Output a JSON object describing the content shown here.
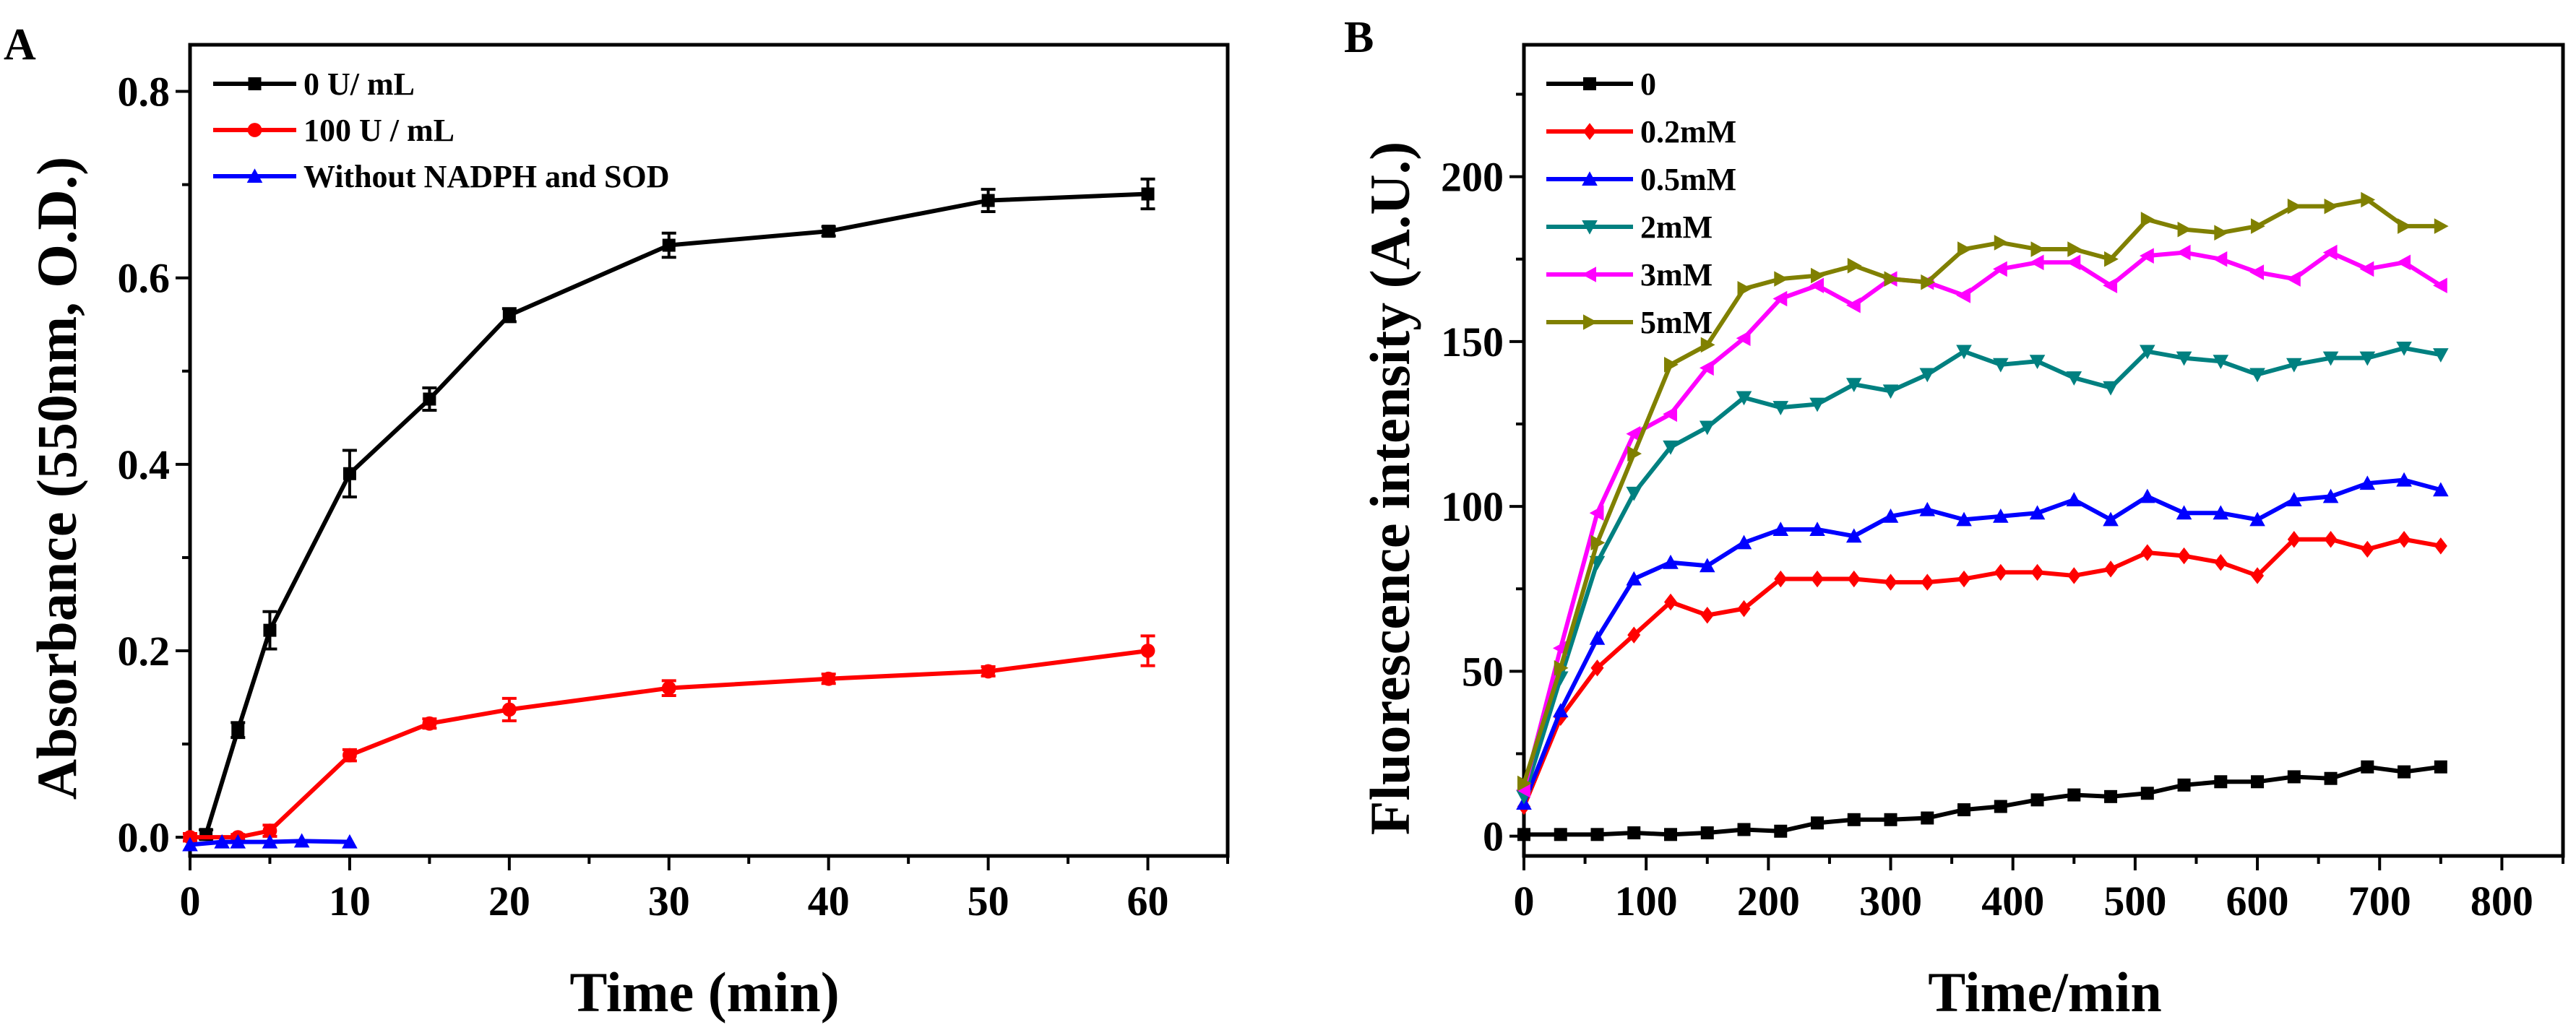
{
  "chart_data": [
    {
      "panel_label": "A",
      "type": "line",
      "title": "",
      "xlabel": "Time (min)",
      "ylabel": "Absorbance (550nm, O.D.)",
      "xlim": [
        0,
        65
      ],
      "ylim": [
        -0.02,
        0.85
      ],
      "xticks": [
        0,
        10,
        20,
        30,
        40,
        50,
        60
      ],
      "yticks": [
        0.0,
        0.2,
        0.4,
        0.6,
        0.8
      ],
      "ytick_labels": [
        "0.0",
        "0.2",
        "0.4",
        "0.6",
        "0.8"
      ],
      "grid": false,
      "legend_position": "top-left",
      "series": [
        {
          "name": "0 U/ mL",
          "color": "#000000",
          "marker": "square",
          "x": [
            1,
            3,
            5,
            10,
            15,
            20,
            30,
            40,
            50,
            60
          ],
          "y": [
            0.003,
            0.115,
            0.222,
            0.39,
            0.47,
            0.56,
            0.635,
            0.65,
            0.683,
            0.69
          ],
          "err": [
            0.005,
            0.008,
            0.02,
            0.025,
            0.012,
            0.007,
            0.013,
            0.005,
            0.012,
            0.016
          ]
        },
        {
          "name": "100 U / mL",
          "color": "#ff0000",
          "marker": "circle",
          "x": [
            0,
            3,
            5,
            10,
            15,
            20,
            30,
            40,
            50,
            60
          ],
          "y": [
            0.0,
            0.0,
            0.007,
            0.088,
            0.122,
            0.137,
            0.16,
            0.17,
            0.178,
            0.2
          ],
          "err": [
            0.004,
            0.003,
            0.006,
            0.006,
            0.005,
            0.012,
            0.008,
            0.005,
            0.005,
            0.016
          ]
        },
        {
          "name": "Without NADPH and SOD",
          "color": "#0000ff",
          "marker": "triangle-up",
          "x": [
            0,
            2,
            3,
            5,
            7,
            10
          ],
          "y": [
            -0.008,
            -0.005,
            -0.005,
            -0.005,
            -0.004,
            -0.005
          ],
          "err": [
            0,
            0,
            0,
            0,
            0,
            0
          ]
        }
      ]
    },
    {
      "panel_label": "B",
      "type": "line",
      "title": "",
      "xlabel": "Time/min",
      "ylabel": "Fluorescence intensity (A.U.)",
      "xlim": [
        0,
        850
      ],
      "ylim": [
        -6,
        240
      ],
      "xticks": [
        0,
        100,
        200,
        300,
        400,
        500,
        600,
        700,
        800
      ],
      "yticks": [
        0,
        50,
        100,
        150,
        200
      ],
      "ytick_labels": [
        "0",
        "50",
        "100",
        "150",
        "200"
      ],
      "grid": false,
      "legend_position": "top-left",
      "x": [
        0,
        30,
        60,
        90,
        120,
        150,
        180,
        210,
        240,
        270,
        300,
        330,
        360,
        390,
        420,
        450,
        480,
        510,
        540,
        570,
        600,
        630,
        660,
        690,
        720,
        750
      ],
      "series": [
        {
          "name": "0",
          "color": "#000000",
          "marker": "square",
          "y": [
            0.5,
            0.5,
            0.5,
            1,
            0.5,
            1,
            2,
            1.5,
            4,
            5,
            5,
            5.5,
            8,
            9,
            11,
            12.5,
            12,
            13,
            15.5,
            16.5,
            16.5,
            18,
            17.5,
            21,
            19.5,
            21
          ]
        },
        {
          "name": "0.2mM",
          "color": "#ff0000",
          "marker": "diamond",
          "y": [
            9,
            36,
            51,
            61,
            71,
            67,
            69,
            78,
            78,
            78,
            77,
            77,
            78,
            80,
            80,
            79,
            81,
            86,
            85,
            83,
            79,
            90,
            90,
            87,
            90,
            88
          ]
        },
        {
          "name": "0.5mM",
          "color": "#0000ff",
          "marker": "triangle-up",
          "y": [
            10,
            38,
            60,
            78,
            83,
            82,
            89,
            93,
            93,
            91,
            97,
            99,
            96,
            97,
            98,
            102,
            96,
            103,
            98,
            98,
            96,
            102,
            103,
            107,
            108,
            105
          ]
        },
        {
          "name": "2mM",
          "color": "#008080",
          "marker": "triangle-down",
          "y": [
            12,
            48,
            83,
            104,
            118,
            124,
            133,
            130,
            131,
            137,
            135,
            140,
            147,
            143,
            144,
            139,
            136,
            147,
            145,
            144,
            140,
            143,
            145,
            145,
            148,
            146
          ]
        },
        {
          "name": "3mM",
          "color": "#ff00ff",
          "marker": "triangle-left",
          "y": [
            14,
            57,
            98,
            122,
            128,
            142,
            151,
            163,
            167,
            161,
            169,
            168,
            164,
            172,
            174,
            174,
            167,
            176,
            177,
            175,
            171,
            169,
            177,
            172,
            174,
            167
          ]
        },
        {
          "name": "5mM",
          "color": "#808000",
          "marker": "triangle-right",
          "y": [
            16,
            51,
            89,
            116,
            143,
            149,
            166,
            169,
            170,
            173,
            169,
            168,
            178,
            180,
            178,
            178,
            175,
            187,
            184,
            183,
            185,
            191,
            191,
            193,
            185,
            185
          ]
        }
      ]
    }
  ]
}
